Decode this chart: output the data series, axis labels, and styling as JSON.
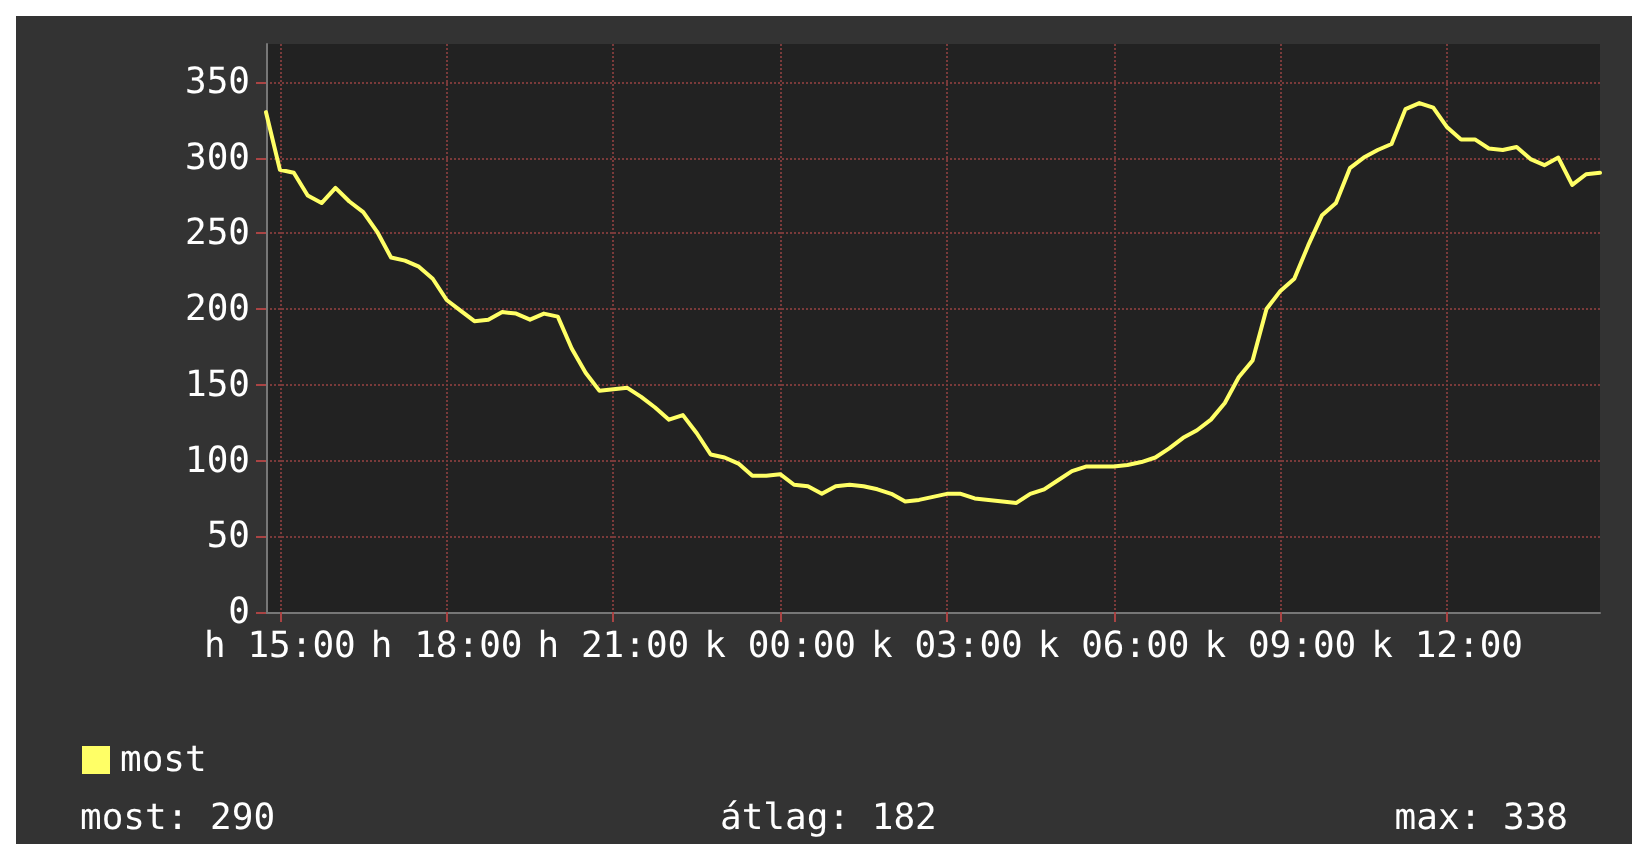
{
  "chart_data": {
    "type": "line",
    "ylim": [
      0,
      375
    ],
    "categories": [
      null,
      "h 15:00",
      null,
      null,
      null,
      null,
      null,
      null,
      null,
      null,
      null,
      null,
      null,
      "h 18:00",
      null,
      null,
      null,
      null,
      null,
      null,
      null,
      null,
      null,
      null,
      null,
      "h 21:00",
      null,
      null,
      null,
      null,
      null,
      null,
      null,
      null,
      null,
      null,
      null,
      "k 00:00",
      null,
      null,
      null,
      null,
      null,
      null,
      null,
      null,
      null,
      null,
      null,
      "k 03:00",
      null,
      null,
      null,
      null,
      null,
      null,
      null,
      null,
      null,
      null,
      null,
      "k 06:00",
      null,
      null,
      null,
      null,
      null,
      null,
      null,
      null,
      null,
      null,
      null,
      "k 09:00",
      null,
      null,
      null,
      null,
      null,
      null,
      null,
      null,
      null,
      null,
      null,
      "k 12:00",
      null,
      null,
      null,
      null,
      null,
      null,
      null,
      null,
      null,
      null,
      null
    ],
    "yticks": [
      0,
      50,
      100,
      150,
      200,
      250,
      300,
      350
    ],
    "grid": true,
    "legend": "bottom left",
    "marker": "none",
    "line_style": "solid",
    "annotations": [
      "most: 290",
      "átlag: 182",
      "max: 338"
    ],
    "series": [
      {
        "name": "most",
        "color": "#ffff66",
        "values": [
          330,
          292,
          290,
          275,
          270,
          280,
          271,
          264,
          251,
          234,
          232,
          228,
          220,
          206,
          199,
          192,
          193,
          198,
          197,
          193,
          197,
          195,
          174,
          158,
          146,
          147,
          148,
          142,
          135,
          127,
          130,
          118,
          104,
          102,
          98,
          90,
          90,
          91,
          84,
          83,
          78,
          83,
          84,
          83,
          81,
          78,
          73,
          74,
          76,
          78,
          78,
          75,
          74,
          73,
          72,
          78,
          81,
          87,
          93,
          96,
          96,
          96,
          97,
          99,
          102,
          108,
          115,
          120,
          127,
          138,
          155,
          166,
          200,
          212,
          220,
          242,
          262,
          270,
          293,
          300,
          305,
          309,
          332,
          336,
          333,
          320,
          312,
          312,
          306,
          305,
          307,
          299,
          295,
          300,
          282,
          289,
          290
        ]
      }
    ]
  }
}
